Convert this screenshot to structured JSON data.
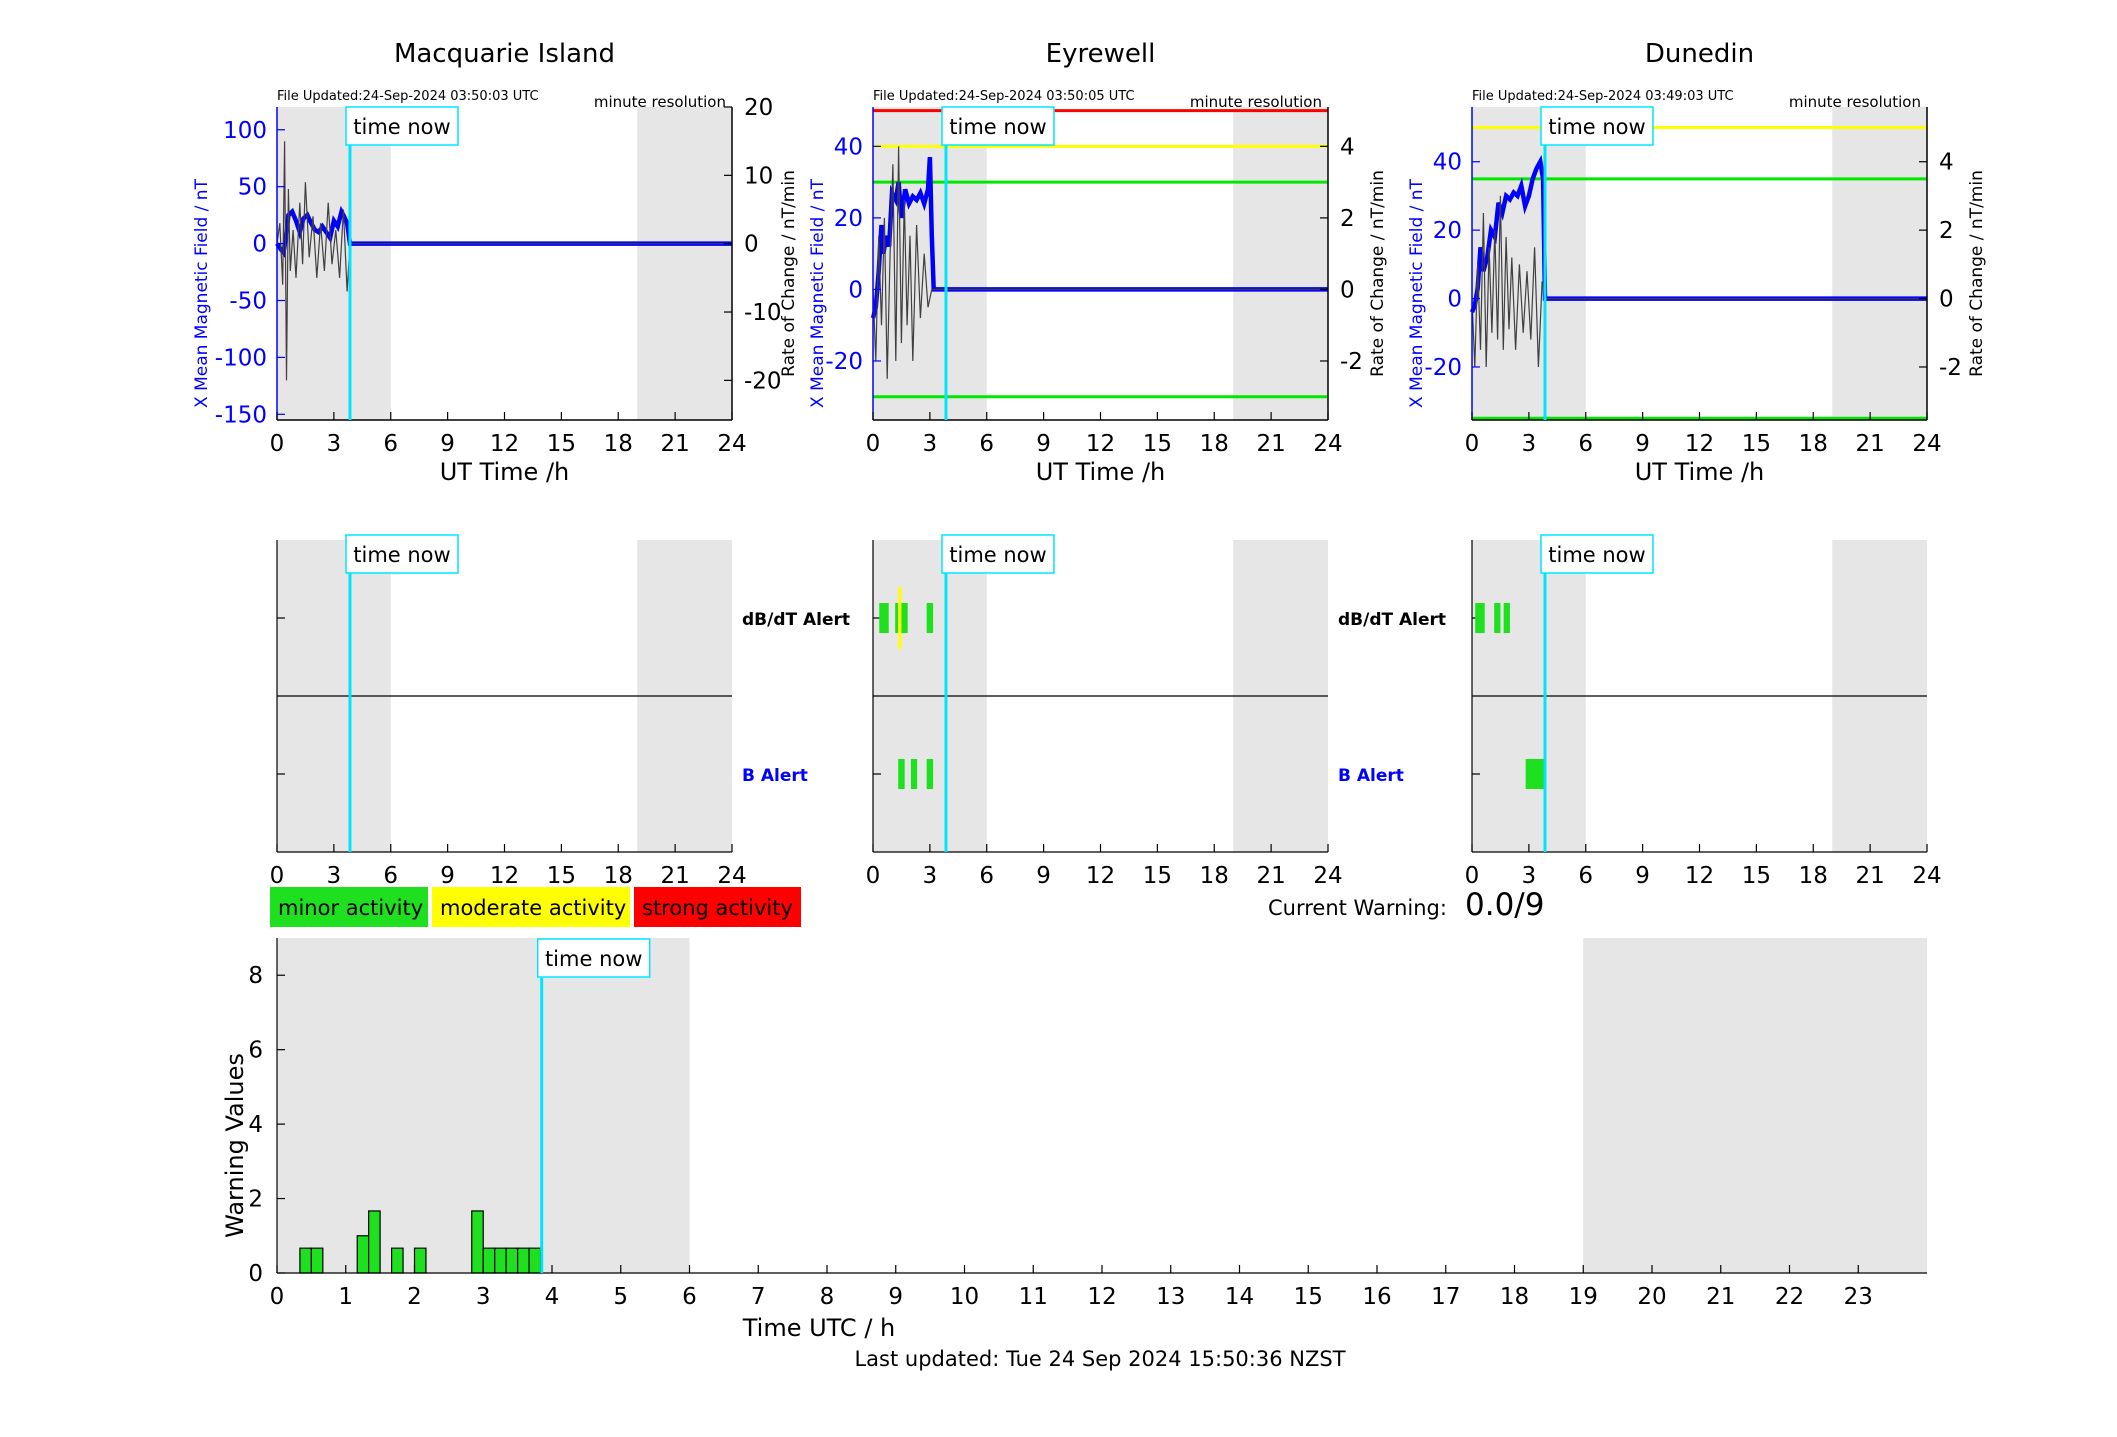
{
  "page": {
    "last_updated": "Last updated: Tue 24 Sep 2024 15:50:36 NZST",
    "current_warning_label": "Current Warning:",
    "current_warning_value": "0.0/9",
    "time_now_label": "time now",
    "resolution_label": "minute resolution",
    "colors": {
      "minor": "#00e800",
      "moderate": "#ffff00",
      "strong": "#ff0000",
      "field_series": "#0000ff",
      "rate_series": "#404040",
      "time_now": "#00e5ff",
      "shade": "#e6e6e6"
    }
  },
  "legend": [
    {
      "label": "minor activity",
      "color": "#1ee01e"
    },
    {
      "label": "moderate activity",
      "color": "#ffff00"
    },
    {
      "label": "strong activity",
      "color": "#ff0000"
    }
  ],
  "stations": [
    {
      "name": "Macquarie Island",
      "file_updated": "File Updated:24-Sep-2024 03:50:03 UTC",
      "resolution": "minute resolution",
      "xlabel": "UT Time /h",
      "ylabel_left": "X Mean Magnetic Field / nT",
      "ylabel_right": "Rate of Change / nT/min"
    },
    {
      "name": "Eyrewell",
      "file_updated": "File Updated:24-Sep-2024 03:50:05 UTC",
      "resolution": "minute resolution",
      "xlabel": "UT Time /h",
      "ylabel_left": "X Mean Magnetic Field / nT",
      "ylabel_right": "Rate of Change / nT/min"
    },
    {
      "name": "Dunedin",
      "file_updated": "File Updated:24-Sep-2024 03:49:03 UTC",
      "resolution": "minute resolution",
      "xlabel": "UT Time /h",
      "ylabel_left": "X Mean Magnetic Field / nT",
      "ylabel_right": "Rate of Change / nT/min"
    }
  ],
  "alert_labels": {
    "dbdt": "dB/dT Alert",
    "b": "B Alert"
  },
  "warning_chart": {
    "xlabel": "Time UTC / h",
    "ylabel": "Warning Values"
  },
  "chart_data": [
    {
      "type": "line",
      "title": "Macquarie Island",
      "xlabel": "UT Time /h",
      "ylabel": "X Mean Magnetic Field / nT",
      "ylabel_right": "Rate of Change / nT/min",
      "xlim": [
        0,
        24
      ],
      "ylim": [
        -155,
        120
      ],
      "ylim_right": [
        -25.8,
        20
      ],
      "xticks": [
        0,
        3,
        6,
        9,
        12,
        15,
        18,
        21,
        24
      ],
      "yticks": [
        -150,
        -100,
        -50,
        0,
        50,
        100
      ],
      "yticks_right": [
        -20,
        -10,
        0,
        10,
        20
      ],
      "shaded_hours": [
        [
          0,
          6
        ],
        [
          19,
          24
        ]
      ],
      "time_now": 3.85,
      "thresholds": [],
      "series": [
        {
          "name": "X Mean Magnetic Field",
          "axis": "left",
          "color": "#0000ff",
          "x": [
            0,
            0.2,
            0.35,
            0.5,
            0.6,
            0.8,
            1.0,
            1.2,
            1.4,
            1.6,
            1.8,
            2.0,
            2.2,
            2.4,
            2.6,
            2.8,
            3.0,
            3.2,
            3.4,
            3.5,
            3.7,
            3.85,
            24
          ],
          "y": [
            0,
            -5,
            -8,
            10,
            25,
            28,
            20,
            10,
            22,
            25,
            18,
            12,
            10,
            15,
            10,
            5,
            20,
            15,
            28,
            25,
            18,
            0,
            0
          ]
        },
        {
          "name": "Rate of Change",
          "axis": "right",
          "color": "#404040",
          "x": [
            0,
            0.15,
            0.3,
            0.4,
            0.5,
            0.6,
            0.7,
            0.85,
            1.0,
            1.2,
            1.35,
            1.5,
            1.7,
            1.9,
            2.1,
            2.3,
            2.5,
            2.7,
            2.9,
            3.1,
            3.3,
            3.5,
            3.7,
            3.85,
            24
          ],
          "y": [
            0,
            3,
            -6,
            15,
            -20,
            8,
            -4,
            2,
            -5,
            6,
            -3,
            9,
            -2,
            4,
            -5,
            3,
            -4,
            6,
            -3,
            2,
            -5,
            5,
            -7,
            0,
            0
          ]
        }
      ]
    },
    {
      "type": "line",
      "title": "Eyrewell",
      "xlabel": "UT Time /h",
      "ylabel": "X Mean Magnetic Field / nT",
      "ylabel_right": "Rate of Change / nT/min",
      "xlim": [
        0,
        24
      ],
      "ylim": [
        -36.5,
        51
      ],
      "ylim_right": [
        -3.65,
        5.1
      ],
      "xticks": [
        0,
        3,
        6,
        9,
        12,
        15,
        18,
        21,
        24
      ],
      "yticks": [
        -20,
        0,
        20,
        40
      ],
      "yticks_right": [
        -2,
        0,
        2,
        4
      ],
      "shaded_hours": [
        [
          0,
          6
        ],
        [
          19,
          24
        ]
      ],
      "time_now": 3.85,
      "thresholds": [
        {
          "y": 50,
          "color": "#ff0000"
        },
        {
          "y": 40,
          "color": "#ffff00"
        },
        {
          "y": 30,
          "color": "#00e800"
        },
        {
          "y": -30,
          "color": "#00e800"
        }
      ],
      "series": [
        {
          "name": "X Mean Magnetic Field",
          "axis": "left",
          "color": "#0000ff",
          "x": [
            0,
            0.15,
            0.3,
            0.45,
            0.55,
            0.7,
            0.85,
            1.0,
            1.2,
            1.35,
            1.5,
            1.7,
            1.9,
            2.1,
            2.3,
            2.5,
            2.7,
            2.9,
            3.0,
            3.1,
            3.2,
            3.3,
            24
          ],
          "y": [
            -8,
            -5,
            5,
            18,
            10,
            15,
            12,
            27,
            25,
            30,
            20,
            28,
            24,
            26,
            25,
            27,
            24,
            28,
            37,
            15,
            0,
            0,
            0
          ]
        },
        {
          "name": "Rate of Change",
          "axis": "right",
          "color": "#404040",
          "x": [
            0,
            0.15,
            0.3,
            0.45,
            0.6,
            0.75,
            0.9,
            1.05,
            1.2,
            1.35,
            1.5,
            1.65,
            1.8,
            1.95,
            2.1,
            2.3,
            2.5,
            2.7,
            2.9,
            3.1,
            3.3,
            24
          ],
          "y": [
            0,
            -2,
            1.5,
            -1,
            2,
            -2.5,
            1,
            3.5,
            -2,
            4,
            -1.5,
            2.5,
            -1,
            1.5,
            -2,
            1.8,
            -0.8,
            1,
            -0.5,
            0,
            0,
            0
          ]
        }
      ]
    },
    {
      "type": "line",
      "title": "Dunedin",
      "xlabel": "UT Time /h",
      "ylabel": "X Mean Magnetic Field / nT",
      "ylabel_right": "Rate of Change / nT/min",
      "xlim": [
        0,
        24
      ],
      "ylim": [
        -35.5,
        56
      ],
      "ylim_right": [
        -3.55,
        5.6
      ],
      "xticks": [
        0,
        3,
        6,
        9,
        12,
        15,
        18,
        21,
        24
      ],
      "yticks": [
        -20,
        0,
        20,
        40
      ],
      "yticks_right": [
        -2,
        0,
        2,
        4
      ],
      "shaded_hours": [
        [
          0,
          6
        ],
        [
          19,
          24
        ]
      ],
      "time_now": 3.85,
      "thresholds": [
        {
          "y": 50,
          "color": "#ffff00"
        },
        {
          "y": 35,
          "color": "#00e800"
        },
        {
          "y": -35,
          "color": "#00e800"
        }
      ],
      "series": [
        {
          "name": "X Mean Magnetic Field",
          "axis": "left",
          "color": "#0000ff",
          "x": [
            0,
            0.15,
            0.3,
            0.45,
            0.6,
            0.8,
            1.0,
            1.2,
            1.4,
            1.6,
            1.8,
            2.0,
            2.2,
            2.4,
            2.6,
            2.8,
            3.0,
            3.2,
            3.4,
            3.6,
            3.75,
            3.85,
            24
          ],
          "y": [
            -4,
            -2,
            3,
            15,
            8,
            12,
            20,
            18,
            28,
            25,
            30,
            29,
            31,
            30,
            33,
            27,
            30,
            35,
            38,
            40,
            35,
            0,
            0
          ]
        },
        {
          "name": "Rate of Change",
          "axis": "right",
          "color": "#404040",
          "x": [
            0,
            0.15,
            0.3,
            0.45,
            0.6,
            0.75,
            0.9,
            1.05,
            1.2,
            1.35,
            1.5,
            1.65,
            1.8,
            1.95,
            2.1,
            2.3,
            2.5,
            2.7,
            2.9,
            3.1,
            3.3,
            3.5,
            3.7,
            3.85,
            24
          ],
          "y": [
            0,
            -2,
            1,
            -1.5,
            2.5,
            -2,
            1.5,
            -1,
            2,
            -1.2,
            3,
            -1.5,
            1.8,
            -0.9,
            1.2,
            -1.5,
            1,
            -1,
            0.8,
            -1.2,
            1.5,
            -2,
            0.5,
            0,
            0
          ]
        }
      ]
    },
    {
      "type": "bar",
      "title": "",
      "xlabel": "Time UTC / h",
      "ylabel": "Warning Values",
      "xlim": [
        0,
        24
      ],
      "ylim": [
        0,
        9
      ],
      "xticks": [
        0,
        1,
        2,
        3,
        4,
        5,
        6,
        7,
        8,
        9,
        10,
        11,
        12,
        13,
        14,
        15,
        16,
        17,
        18,
        19,
        20,
        21,
        22,
        23
      ],
      "yticks": [
        0,
        2,
        4,
        6,
        8
      ],
      "shaded_hours": [
        [
          0,
          6
        ],
        [
          19,
          24
        ]
      ],
      "time_now": 3.85,
      "bar_width_h": 0.1667,
      "x": [
        0.333,
        0.5,
        1.167,
        1.333,
        1.667,
        2.0,
        2.833,
        3.0,
        3.167,
        3.333,
        3.5,
        3.667
      ],
      "values": [
        0.667,
        0.667,
        1.0,
        1.667,
        0.667,
        0.667,
        1.667,
        0.667,
        0.667,
        0.667,
        0.667,
        0.667
      ],
      "color": "#1ee01e"
    }
  ],
  "alert_data": [
    {
      "station": "Macquarie Island",
      "dbdt_bars": [],
      "b_bars": []
    },
    {
      "station": "Eyrewell",
      "dbdt_bars": [
        [
          0.33,
          0.83,
          "#1ee01e"
        ],
        [
          1.17,
          1.33,
          "#1ee01e"
        ],
        [
          1.33,
          1.5,
          "#ffff00"
        ],
        [
          1.5,
          1.83,
          "#1ee01e"
        ],
        [
          2.83,
          3.17,
          "#1ee01e"
        ]
      ],
      "dbdt_tall": [
        1.33,
        1.5
      ],
      "b_bars": [
        [
          1.33,
          1.67,
          "#1ee01e"
        ],
        [
          2.0,
          2.33,
          "#1ee01e"
        ],
        [
          2.83,
          3.17,
          "#1ee01e"
        ]
      ]
    },
    {
      "station": "Dunedin",
      "dbdt_bars": [
        [
          0.17,
          0.67,
          "#1ee01e"
        ],
        [
          1.17,
          1.5,
          "#1ee01e"
        ],
        [
          1.67,
          2.0,
          "#1ee01e"
        ]
      ],
      "b_bars": [
        [
          2.83,
          3.83,
          "#1ee01e"
        ]
      ]
    }
  ]
}
